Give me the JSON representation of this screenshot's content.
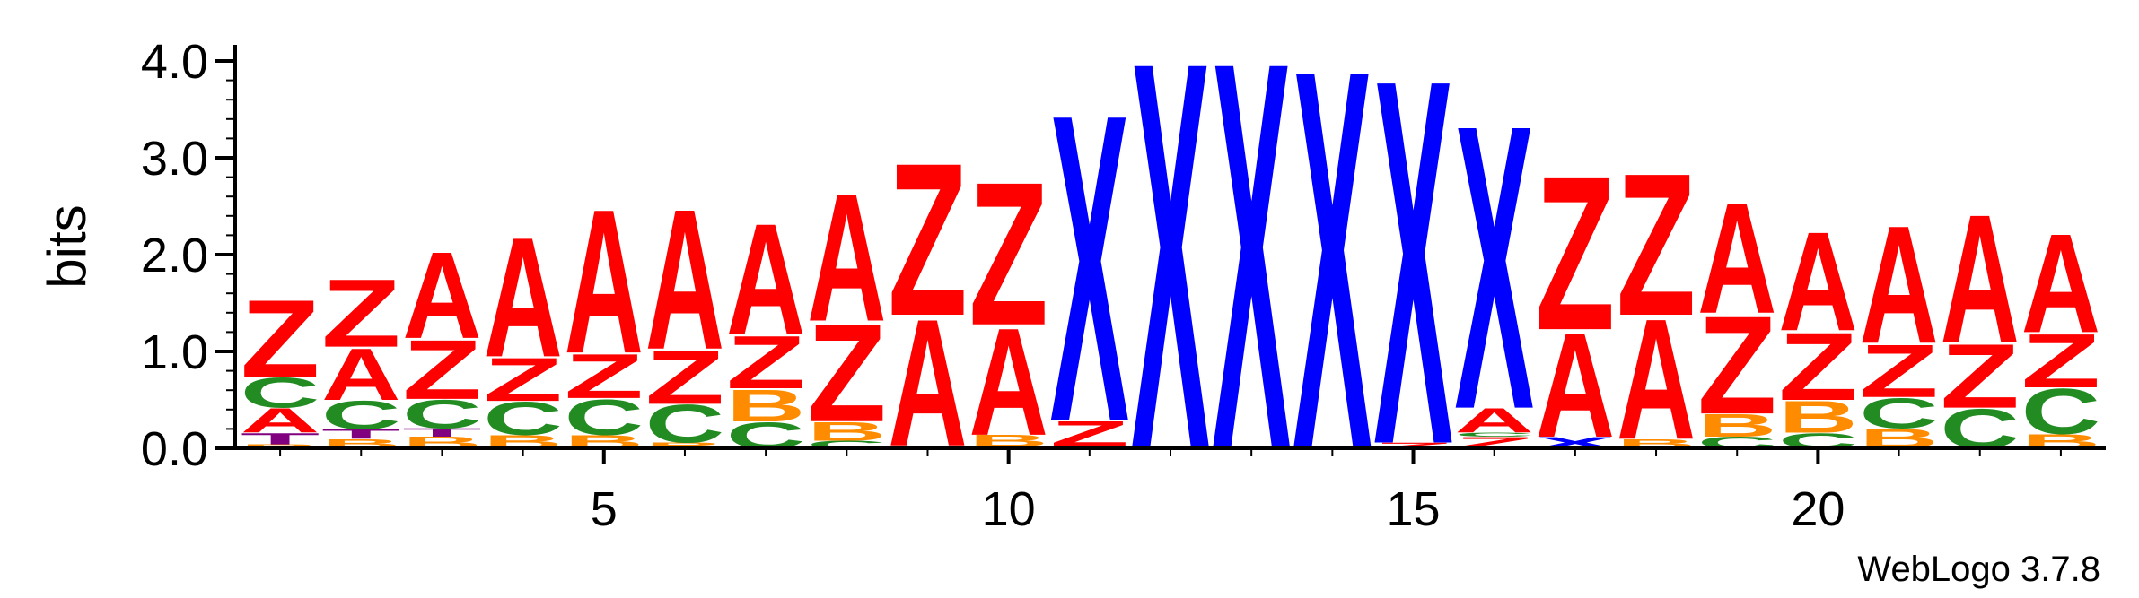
{
  "chart_data": {
    "type": "sequence-logo",
    "ylabel": "bits",
    "ylim": [
      0,
      4.2
    ],
    "yticks": [
      "0.0",
      "1.0",
      "2.0",
      "3.0",
      "4.0"
    ],
    "yticks_values": [
      0,
      1,
      2,
      3,
      4
    ],
    "xticks": [
      "5",
      "10",
      "15",
      "20"
    ],
    "xticks_positions": [
      5,
      10,
      15,
      20
    ],
    "credit": "WebLogo 3.7.8",
    "colors": {
      "A": "#ff0000",
      "Z": "#ff0000",
      "C": "#228b22",
      "B": "#ff8c00",
      "X": "#0000ff",
      "T": "#800080"
    },
    "positions": [
      {
        "pos": 1,
        "stack": [
          {
            "letter": "B",
            "height": 0.04
          },
          {
            "letter": "T",
            "height": 0.12
          },
          {
            "letter": "A",
            "height": 0.26
          },
          {
            "letter": "C",
            "height": 0.32
          },
          {
            "letter": "Z",
            "height": 0.82
          }
        ]
      },
      {
        "pos": 2,
        "stack": [
          {
            "letter": "B",
            "height": 0.1
          },
          {
            "letter": "T",
            "height": 0.1
          },
          {
            "letter": "C",
            "height": 0.3
          },
          {
            "letter": "A",
            "height": 0.55
          },
          {
            "letter": "Z",
            "height": 0.72
          }
        ]
      },
      {
        "pos": 3,
        "stack": [
          {
            "letter": "B",
            "height": 0.12
          },
          {
            "letter": "T",
            "height": 0.09
          },
          {
            "letter": "C",
            "height": 0.3
          },
          {
            "letter": "Z",
            "height": 0.63
          },
          {
            "letter": "A",
            "height": 0.92
          }
        ]
      },
      {
        "pos": 4,
        "stack": [
          {
            "letter": "B",
            "height": 0.14
          },
          {
            "letter": "C",
            "height": 0.35
          },
          {
            "letter": "Z",
            "height": 0.46
          },
          {
            "letter": "A",
            "height": 1.27
          }
        ]
      },
      {
        "pos": 5,
        "stack": [
          {
            "letter": "B",
            "height": 0.14
          },
          {
            "letter": "C",
            "height": 0.38
          },
          {
            "letter": "Z",
            "height": 0.47
          },
          {
            "letter": "A",
            "height": 1.53
          }
        ]
      },
      {
        "pos": 6,
        "stack": [
          {
            "letter": "B",
            "height": 0.06
          },
          {
            "letter": "C",
            "height": 0.4
          },
          {
            "letter": "Z",
            "height": 0.57
          },
          {
            "letter": "A",
            "height": 1.49
          }
        ]
      },
      {
        "pos": 7,
        "stack": [
          {
            "letter": "C",
            "height": 0.28
          },
          {
            "letter": "B",
            "height": 0.34
          },
          {
            "letter": "Z",
            "height": 0.56
          },
          {
            "letter": "A",
            "height": 1.18
          }
        ]
      },
      {
        "pos": 8,
        "stack": [
          {
            "letter": "C",
            "height": 0.08
          },
          {
            "letter": "B",
            "height": 0.2
          },
          {
            "letter": "Z",
            "height": 1.04
          },
          {
            "letter": "A",
            "height": 1.36
          }
        ]
      },
      {
        "pos": 9,
        "stack": [
          {
            "letter": "B",
            "height": 0.03
          },
          {
            "letter": "A",
            "height": 1.35
          },
          {
            "letter": "Z",
            "height": 1.62
          }
        ]
      },
      {
        "pos": 10,
        "stack": [
          {
            "letter": "C",
            "height": 0.02
          },
          {
            "letter": "B",
            "height": 0.12
          },
          {
            "letter": "A",
            "height": 1.14
          },
          {
            "letter": "Z",
            "height": 1.52
          }
        ]
      },
      {
        "pos": 11,
        "stack": [
          {
            "letter": "B",
            "height": 0.02
          },
          {
            "letter": "Z",
            "height": 0.27
          },
          {
            "letter": "X",
            "height": 3.27
          }
        ]
      },
      {
        "pos": 12,
        "stack": [
          {
            "letter": "X",
            "height": 4.13
          }
        ]
      },
      {
        "pos": 13,
        "stack": [
          {
            "letter": "X",
            "height": 4.13
          }
        ]
      },
      {
        "pos": 14,
        "stack": [
          {
            "letter": "B",
            "height": 0.02
          },
          {
            "letter": "X",
            "height": 4.03
          }
        ]
      },
      {
        "pos": 15,
        "stack": [
          {
            "letter": "Z",
            "height": 0.06
          },
          {
            "letter": "X",
            "height": 3.88
          }
        ]
      },
      {
        "pos": 16,
        "stack": [
          {
            "letter": "Z",
            "height": 0.12
          },
          {
            "letter": "C",
            "height": 0.04
          },
          {
            "letter": "A",
            "height": 0.26
          },
          {
            "letter": "X",
            "height": 3.02
          }
        ]
      },
      {
        "pos": 17,
        "stack": [
          {
            "letter": "X",
            "height": 0.12
          },
          {
            "letter": "A",
            "height": 1.11
          },
          {
            "letter": "Z",
            "height": 1.64
          }
        ]
      },
      {
        "pos": 18,
        "stack": [
          {
            "letter": "B",
            "height": 0.1
          },
          {
            "letter": "A",
            "height": 1.28
          },
          {
            "letter": "Z",
            "height": 1.51
          }
        ]
      },
      {
        "pos": 19,
        "stack": [
          {
            "letter": "C",
            "height": 0.12
          },
          {
            "letter": "B",
            "height": 0.24
          },
          {
            "letter": "Z",
            "height": 1.04
          },
          {
            "letter": "A",
            "height": 1.18
          }
        ]
      },
      {
        "pos": 20,
        "stack": [
          {
            "letter": "C",
            "height": 0.16
          },
          {
            "letter": "B",
            "height": 0.34
          },
          {
            "letter": "Z",
            "height": 0.72
          },
          {
            "letter": "A",
            "height": 1.05
          }
        ]
      },
      {
        "pos": 21,
        "stack": [
          {
            "letter": "C",
            "height": 0.01
          },
          {
            "letter": "B",
            "height": 0.2
          },
          {
            "letter": "C",
            "height": 0.32
          },
          {
            "letter": "Z",
            "height": 0.56
          },
          {
            "letter": "A",
            "height": 1.25
          }
        ]
      },
      {
        "pos": 22,
        "stack": [
          {
            "letter": "C",
            "height": 0.42
          },
          {
            "letter": "Z",
            "height": 0.68
          },
          {
            "letter": "A",
            "height": 1.36
          }
        ]
      },
      {
        "pos": 23,
        "stack": [
          {
            "letter": "B",
            "height": 0.15
          },
          {
            "letter": "C",
            "height": 0.48
          },
          {
            "letter": "Z",
            "height": 0.57
          },
          {
            "letter": "A",
            "height": 1.05
          }
        ]
      }
    ]
  }
}
